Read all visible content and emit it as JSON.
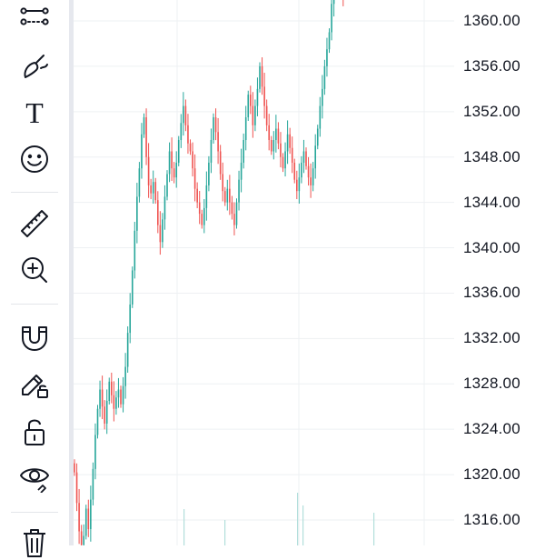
{
  "toolbar": {
    "tools": [
      {
        "name": "trend-line-tool-icon"
      },
      {
        "name": "brush-tool-icon"
      },
      {
        "name": "text-tool-icon"
      },
      {
        "name": "emoji-tool-icon"
      },
      {
        "name": "ruler-tool-icon"
      },
      {
        "name": "zoom-in-tool-icon"
      },
      {
        "name": "magnet-mode-icon"
      },
      {
        "name": "lock-drawings-pencil-icon"
      },
      {
        "name": "lock-all-icon"
      },
      {
        "name": "hide-drawings-eye-icon"
      },
      {
        "name": "trash-icon"
      }
    ],
    "text_tool_glyph": "T"
  },
  "price_axis": {
    "labels": [
      "1360.00",
      "1356.00",
      "1352.00",
      "1348.00",
      "1344.00",
      "1340.00",
      "1336.00",
      "1332.00",
      "1328.00",
      "1324.00",
      "1320.00",
      "1316.00"
    ]
  },
  "chart_data": {
    "type": "candlestick",
    "yaxis_labels": [
      "1360.00",
      "1356.00",
      "1352.00",
      "1348.00",
      "1344.00",
      "1340.00",
      "1336.00",
      "1332.00",
      "1328.00",
      "1324.00",
      "1320.00",
      "1316.00"
    ],
    "ylim": [
      1313.6,
      1361.8
    ],
    "grid": true,
    "colors": {
      "up": "#26a69a",
      "down": "#ef5350",
      "grid": "#eef0f3",
      "volume": "#b2dfdb"
    },
    "closes": [
      1320.2,
      1317.5,
      1315.0,
      1313.8,
      1314.6,
      1317.0,
      1315.2,
      1317.8,
      1320.5,
      1323.5,
      1325.8,
      1327.5,
      1326.0,
      1324.5,
      1326.5,
      1328.2,
      1327.0,
      1325.8,
      1326.8,
      1327.5,
      1326.2,
      1327.8,
      1329.5,
      1332.5,
      1335.0,
      1338.0,
      1341.5,
      1344.5,
      1347.0,
      1350.0,
      1351.5,
      1348.0,
      1345.5,
      1344.8,
      1345.8,
      1344.2,
      1342.0,
      1340.5,
      1342.5,
      1344.5,
      1346.5,
      1348.5,
      1347.0,
      1346.2,
      1347.5,
      1349.5,
      1351.0,
      1352.5,
      1350.8,
      1349.2,
      1348.5,
      1347.0,
      1345.2,
      1344.0,
      1343.0,
      1342.0,
      1343.5,
      1345.5,
      1347.5,
      1349.5,
      1351.5,
      1350.2,
      1348.5,
      1346.5,
      1345.0,
      1344.0,
      1345.2,
      1344.0,
      1343.0,
      1342.0,
      1344.0,
      1346.0,
      1347.5,
      1349.5,
      1351.5,
      1353.5,
      1352.5,
      1350.8,
      1352.5,
      1354.0,
      1356.0,
      1354.2,
      1352.5,
      1350.8,
      1349.5,
      1348.5,
      1349.5,
      1350.5,
      1349.2,
      1348.0,
      1347.0,
      1348.5,
      1350.0,
      1348.8,
      1347.5,
      1346.0,
      1345.0,
      1346.2,
      1347.5,
      1348.5,
      1347.2,
      1346.2,
      1345.5,
      1347.0,
      1349.0,
      1350.5,
      1352.5,
      1354.0,
      1356.0,
      1357.5,
      1359.0,
      1361.5,
      1362.5,
      1362.8,
      1363.0,
      1362.5,
      1362.0
    ]
  }
}
